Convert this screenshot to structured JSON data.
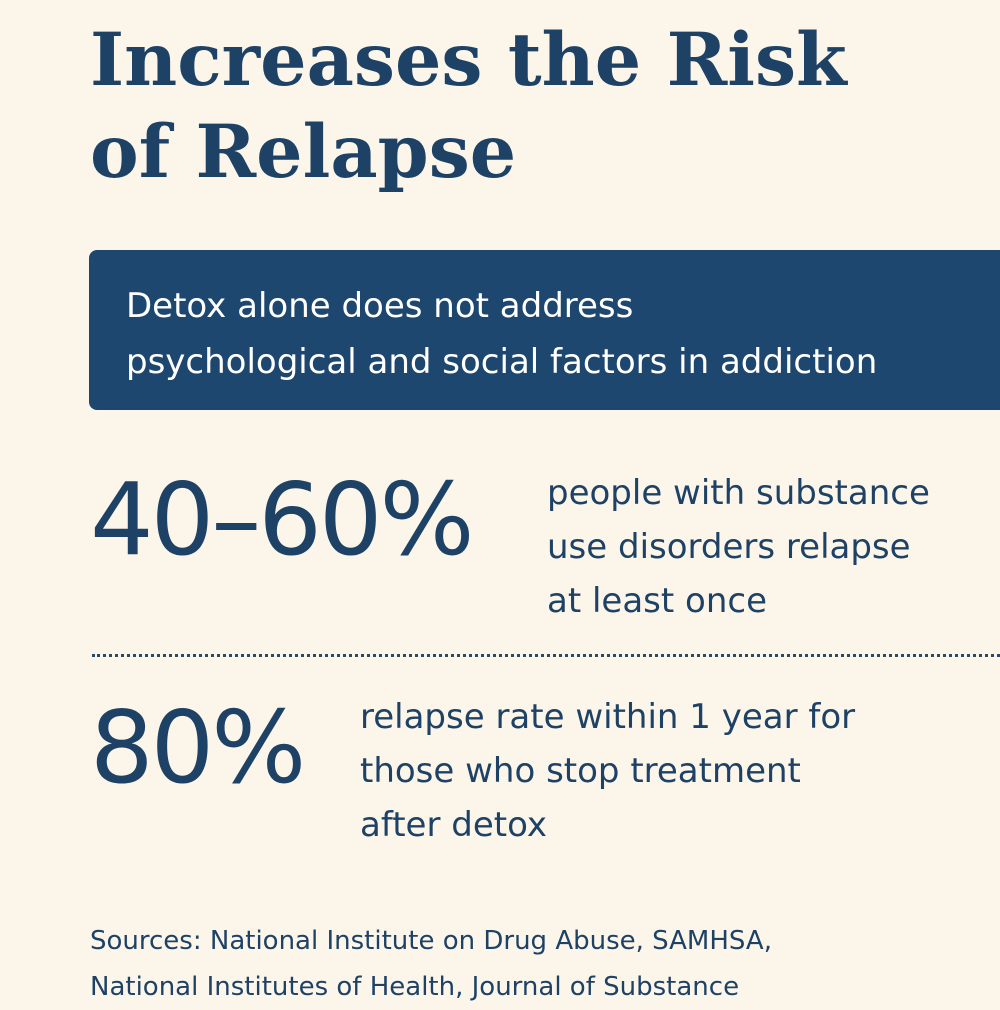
{
  "title": {
    "line1": "Increases the Risk",
    "line2": "of Relapse"
  },
  "callout": {
    "line1": "Detox alone does not address",
    "line2": "psychological and social factors in addiction"
  },
  "stats": [
    {
      "value": "40–60%",
      "desc_lines": [
        "people with substance",
        "use disorders relapse",
        "at least once"
      ]
    },
    {
      "value": "80%",
      "desc_lines": [
        "relapse rate within 1 year for",
        "those who stop treatment",
        "after detox"
      ]
    }
  ],
  "sources": {
    "line1": "Sources: National Institute on Drug Abuse, SAMHSA,",
    "line2": "National Institutes of Health, Journal of Substance"
  },
  "colors": {
    "background": "#fcf5ea",
    "primary": "#1e4266",
    "callout_bg": "#1e4770",
    "callout_text": "#ffffff"
  }
}
